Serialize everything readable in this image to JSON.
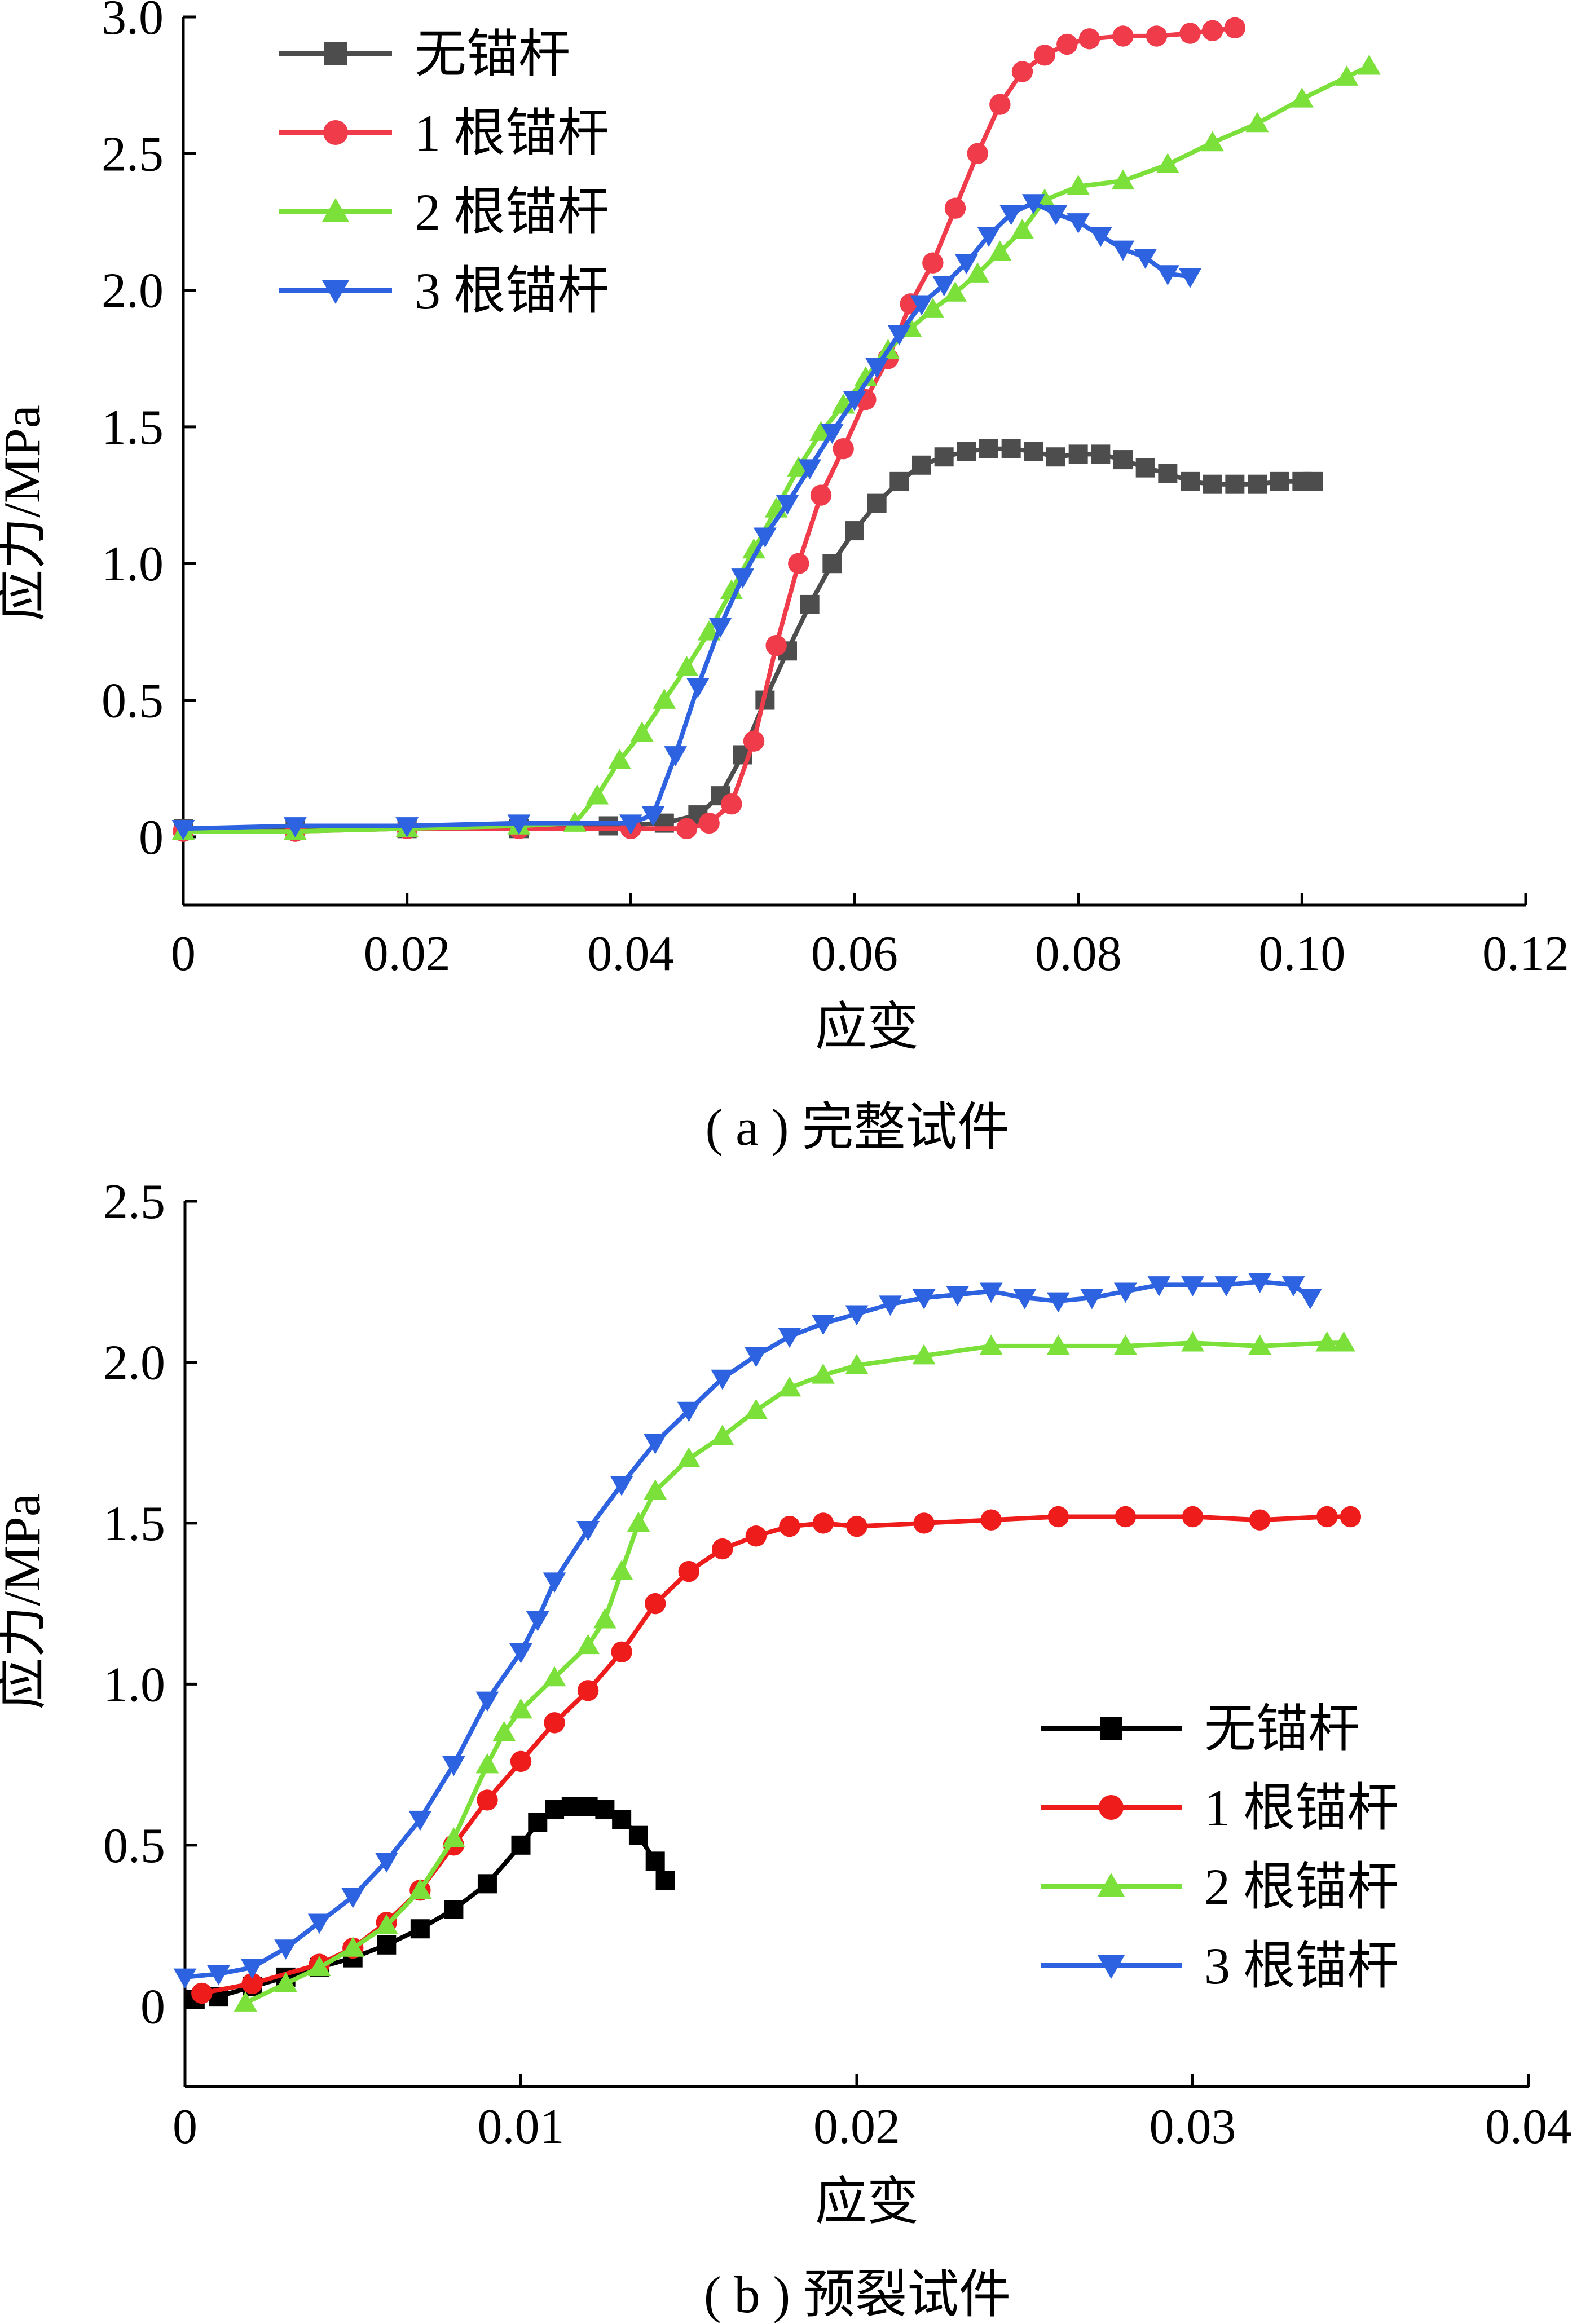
{
  "chart_data": [
    {
      "type": "line",
      "caption": "( a ) 完整试件",
      "xlabel": "应变",
      "ylabel": "应力/MPa",
      "xlim": [
        0,
        0.12
      ],
      "ylim": [
        -0.25,
        3.0
      ],
      "xticks": [
        "0",
        "0.02",
        "0.04",
        "0.06",
        "0.08",
        "0.10",
        "0.12"
      ],
      "xtick_values": [
        0,
        0.02,
        0.04,
        0.06,
        0.08,
        0.1,
        0.12
      ],
      "yticks": [
        "0",
        "0.5",
        "1.0",
        "1.5",
        "2.0",
        "2.5",
        "3.0"
      ],
      "ytick_values": [
        0,
        0.5,
        1.0,
        1.5,
        2.0,
        2.5,
        3.0
      ],
      "legend_position": "top-left",
      "series": [
        {
          "name": "无锚杆",
          "color": "#4d4d4d",
          "marker": "square",
          "points": [
            [
              0,
              0.03
            ],
            [
              0.01,
              0.03
            ],
            [
              0.02,
              0.03
            ],
            [
              0.03,
              0.03
            ],
            [
              0.038,
              0.04
            ],
            [
              0.043,
              0.05
            ],
            [
              0.046,
              0.08
            ],
            [
              0.048,
              0.15
            ],
            [
              0.05,
              0.3
            ],
            [
              0.052,
              0.5
            ],
            [
              0.054,
              0.68
            ],
            [
              0.056,
              0.85
            ],
            [
              0.058,
              1.0
            ],
            [
              0.06,
              1.12
            ],
            [
              0.062,
              1.22
            ],
            [
              0.064,
              1.3
            ],
            [
              0.066,
              1.36
            ],
            [
              0.068,
              1.39
            ],
            [
              0.07,
              1.41
            ],
            [
              0.072,
              1.42
            ],
            [
              0.074,
              1.42
            ],
            [
              0.076,
              1.41
            ],
            [
              0.078,
              1.39
            ],
            [
              0.08,
              1.4
            ],
            [
              0.082,
              1.4
            ],
            [
              0.084,
              1.38
            ],
            [
              0.086,
              1.35
            ],
            [
              0.088,
              1.33
            ],
            [
              0.09,
              1.3
            ],
            [
              0.092,
              1.29
            ],
            [
              0.094,
              1.29
            ],
            [
              0.096,
              1.29
            ],
            [
              0.098,
              1.3
            ],
            [
              0.1,
              1.3
            ],
            [
              0.101,
              1.3
            ]
          ]
        },
        {
          "name": "1 根锚杆",
          "color": "#ef3b4a",
          "marker": "circle",
          "points": [
            [
              0,
              0.02
            ],
            [
              0.01,
              0.02
            ],
            [
              0.02,
              0.03
            ],
            [
              0.03,
              0.03
            ],
            [
              0.04,
              0.03
            ],
            [
              0.045,
              0.03
            ],
            [
              0.047,
              0.05
            ],
            [
              0.049,
              0.12
            ],
            [
              0.051,
              0.35
            ],
            [
              0.053,
              0.7
            ],
            [
              0.055,
              1.0
            ],
            [
              0.057,
              1.25
            ],
            [
              0.059,
              1.42
            ],
            [
              0.061,
              1.6
            ],
            [
              0.063,
              1.75
            ],
            [
              0.065,
              1.95
            ],
            [
              0.067,
              2.1
            ],
            [
              0.069,
              2.3
            ],
            [
              0.071,
              2.5
            ],
            [
              0.073,
              2.68
            ],
            [
              0.075,
              2.8
            ],
            [
              0.077,
              2.86
            ],
            [
              0.079,
              2.9
            ],
            [
              0.081,
              2.92
            ],
            [
              0.084,
              2.93
            ],
            [
              0.087,
              2.93
            ],
            [
              0.09,
              2.94
            ],
            [
              0.092,
              2.95
            ],
            [
              0.094,
              2.96
            ]
          ]
        },
        {
          "name": "2 根锚杆",
          "color": "#7be13a",
          "marker": "triangle-up",
          "points": [
            [
              0,
              0.02
            ],
            [
              0.01,
              0.02
            ],
            [
              0.02,
              0.03
            ],
            [
              0.03,
              0.04
            ],
            [
              0.035,
              0.05
            ],
            [
              0.037,
              0.15
            ],
            [
              0.039,
              0.28
            ],
            [
              0.041,
              0.38
            ],
            [
              0.043,
              0.5
            ],
            [
              0.045,
              0.62
            ],
            [
              0.047,
              0.75
            ],
            [
              0.049,
              0.9
            ],
            [
              0.051,
              1.05
            ],
            [
              0.053,
              1.2
            ],
            [
              0.055,
              1.35
            ],
            [
              0.057,
              1.48
            ],
            [
              0.059,
              1.58
            ],
            [
              0.061,
              1.68
            ],
            [
              0.063,
              1.78
            ],
            [
              0.065,
              1.86
            ],
            [
              0.067,
              1.93
            ],
            [
              0.069,
              1.99
            ],
            [
              0.071,
              2.06
            ],
            [
              0.073,
              2.14
            ],
            [
              0.075,
              2.22
            ],
            [
              0.077,
              2.33
            ],
            [
              0.08,
              2.38
            ],
            [
              0.084,
              2.4
            ],
            [
              0.088,
              2.46
            ],
            [
              0.092,
              2.54
            ],
            [
              0.096,
              2.61
            ],
            [
              0.1,
              2.7
            ],
            [
              0.104,
              2.78
            ],
            [
              0.106,
              2.82
            ]
          ]
        },
        {
          "name": "3 根锚杆",
          "color": "#2d63e0",
          "marker": "triangle-down",
          "points": [
            [
              0,
              0.03
            ],
            [
              0.01,
              0.04
            ],
            [
              0.02,
              0.04
            ],
            [
              0.03,
              0.05
            ],
            [
              0.04,
              0.05
            ],
            [
              0.042,
              0.08
            ],
            [
              0.044,
              0.3
            ],
            [
              0.046,
              0.55
            ],
            [
              0.048,
              0.77
            ],
            [
              0.05,
              0.95
            ],
            [
              0.052,
              1.1
            ],
            [
              0.054,
              1.22
            ],
            [
              0.056,
              1.35
            ],
            [
              0.058,
              1.48
            ],
            [
              0.06,
              1.6
            ],
            [
              0.062,
              1.72
            ],
            [
              0.064,
              1.84
            ],
            [
              0.066,
              1.95
            ],
            [
              0.068,
              2.02
            ],
            [
              0.07,
              2.1
            ],
            [
              0.072,
              2.2
            ],
            [
              0.074,
              2.28
            ],
            [
              0.076,
              2.32
            ],
            [
              0.078,
              2.28
            ],
            [
              0.08,
              2.25
            ],
            [
              0.082,
              2.2
            ],
            [
              0.084,
              2.15
            ],
            [
              0.086,
              2.12
            ],
            [
              0.088,
              2.06
            ],
            [
              0.09,
              2.05
            ]
          ]
        }
      ]
    },
    {
      "type": "line",
      "caption": "( b ) 预裂试件",
      "xlabel": "应变",
      "ylabel": "应力/MPa",
      "xlim": [
        0,
        0.04
      ],
      "ylim": [
        -0.25,
        2.5
      ],
      "xticks": [
        "0",
        "0.01",
        "0.02",
        "0.03",
        "0.04"
      ],
      "xtick_values": [
        0,
        0.01,
        0.02,
        0.03,
        0.04
      ],
      "yticks": [
        "0",
        "0.5",
        "1.0",
        "1.5",
        "2.0",
        "2.5"
      ],
      "ytick_values": [
        0,
        0.5,
        1.0,
        1.5,
        2.0,
        2.5
      ],
      "legend_position": "bottom-right",
      "series": [
        {
          "name": "无锚杆",
          "color": "#000000",
          "marker": "square",
          "points": [
            [
              0.0003,
              0.02
            ],
            [
              0.001,
              0.03
            ],
            [
              0.002,
              0.06
            ],
            [
              0.003,
              0.09
            ],
            [
              0.004,
              0.12
            ],
            [
              0.005,
              0.15
            ],
            [
              0.006,
              0.19
            ],
            [
              0.007,
              0.24
            ],
            [
              0.008,
              0.3
            ],
            [
              0.009,
              0.38
            ],
            [
              0.01,
              0.5
            ],
            [
              0.0105,
              0.57
            ],
            [
              0.011,
              0.61
            ],
            [
              0.0115,
              0.62
            ],
            [
              0.012,
              0.62
            ],
            [
              0.0125,
              0.61
            ],
            [
              0.013,
              0.58
            ],
            [
              0.0135,
              0.53
            ],
            [
              0.014,
              0.45
            ],
            [
              0.0143,
              0.39
            ]
          ]
        },
        {
          "name": "1 根锚杆",
          "color": "#ef1c1c",
          "marker": "circle",
          "points": [
            [
              0.0005,
              0.04
            ],
            [
              0.002,
              0.07
            ],
            [
              0.004,
              0.13
            ],
            [
              0.005,
              0.18
            ],
            [
              0.006,
              0.26
            ],
            [
              0.007,
              0.36
            ],
            [
              0.008,
              0.5
            ],
            [
              0.009,
              0.64
            ],
            [
              0.01,
              0.76
            ],
            [
              0.011,
              0.88
            ],
            [
              0.012,
              0.98
            ],
            [
              0.013,
              1.1
            ],
            [
              0.014,
              1.25
            ],
            [
              0.015,
              1.35
            ],
            [
              0.016,
              1.42
            ],
            [
              0.017,
              1.46
            ],
            [
              0.018,
              1.49
            ],
            [
              0.019,
              1.5
            ],
            [
              0.02,
              1.49
            ],
            [
              0.022,
              1.5
            ],
            [
              0.024,
              1.51
            ],
            [
              0.026,
              1.52
            ],
            [
              0.028,
              1.52
            ],
            [
              0.03,
              1.52
            ],
            [
              0.032,
              1.51
            ],
            [
              0.034,
              1.52
            ],
            [
              0.0347,
              1.52
            ]
          ]
        },
        {
          "name": "2 根锚杆",
          "color": "#7be13a",
          "marker": "triangle-up",
          "points": [
            [
              0.0018,
              0.01
            ],
            [
              0.003,
              0.07
            ],
            [
              0.004,
              0.12
            ],
            [
              0.005,
              0.18
            ],
            [
              0.006,
              0.25
            ],
            [
              0.007,
              0.36
            ],
            [
              0.008,
              0.52
            ],
            [
              0.009,
              0.75
            ],
            [
              0.0095,
              0.85
            ],
            [
              0.01,
              0.92
            ],
            [
              0.011,
              1.02
            ],
            [
              0.012,
              1.12
            ],
            [
              0.0125,
              1.2
            ],
            [
              0.013,
              1.35
            ],
            [
              0.0135,
              1.5
            ],
            [
              0.014,
              1.6
            ],
            [
              0.015,
              1.7
            ],
            [
              0.016,
              1.77
            ],
            [
              0.017,
              1.85
            ],
            [
              0.018,
              1.92
            ],
            [
              0.019,
              1.96
            ],
            [
              0.02,
              1.99
            ],
            [
              0.022,
              2.02
            ],
            [
              0.024,
              2.05
            ],
            [
              0.026,
              2.05
            ],
            [
              0.028,
              2.05
            ],
            [
              0.03,
              2.06
            ],
            [
              0.032,
              2.05
            ],
            [
              0.034,
              2.06
            ],
            [
              0.0345,
              2.06
            ]
          ]
        },
        {
          "name": "3 根锚杆",
          "color": "#2d63e0",
          "marker": "triangle-down",
          "points": [
            [
              0,
              0.09
            ],
            [
              0.001,
              0.1
            ],
            [
              0.002,
              0.12
            ],
            [
              0.003,
              0.18
            ],
            [
              0.004,
              0.26
            ],
            [
              0.005,
              0.34
            ],
            [
              0.006,
              0.45
            ],
            [
              0.007,
              0.58
            ],
            [
              0.008,
              0.75
            ],
            [
              0.009,
              0.95
            ],
            [
              0.01,
              1.1
            ],
            [
              0.0105,
              1.2
            ],
            [
              0.011,
              1.32
            ],
            [
              0.012,
              1.48
            ],
            [
              0.013,
              1.62
            ],
            [
              0.014,
              1.75
            ],
            [
              0.015,
              1.85
            ],
            [
              0.016,
              1.95
            ],
            [
              0.017,
              2.02
            ],
            [
              0.018,
              2.08
            ],
            [
              0.019,
              2.12
            ],
            [
              0.02,
              2.15
            ],
            [
              0.021,
              2.18
            ],
            [
              0.022,
              2.2
            ],
            [
              0.023,
              2.21
            ],
            [
              0.024,
              2.22
            ],
            [
              0.025,
              2.2
            ],
            [
              0.026,
              2.19
            ],
            [
              0.027,
              2.2
            ],
            [
              0.028,
              2.22
            ],
            [
              0.029,
              2.24
            ],
            [
              0.03,
              2.24
            ],
            [
              0.031,
              2.24
            ],
            [
              0.032,
              2.25
            ],
            [
              0.033,
              2.24
            ],
            [
              0.0335,
              2.2
            ]
          ]
        }
      ]
    }
  ]
}
